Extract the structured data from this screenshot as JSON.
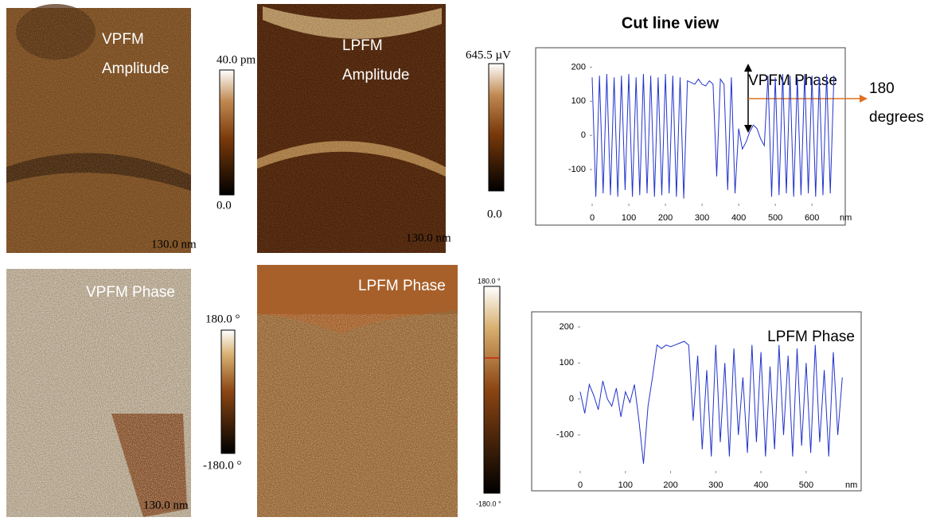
{
  "title": "Cut line view",
  "images": [
    {
      "label": [
        "VPFM",
        "Amplitude"
      ],
      "scale_bar": "130.0 nm",
      "colorbar": [
        "40.0 pm",
        "0.0"
      ]
    },
    {
      "label": [
        "LPFM",
        "Amplitude"
      ],
      "scale_bar": "130.0 nm",
      "colorbar": [
        "645.5 µV",
        "0.0"
      ]
    },
    {
      "label": [
        "VPFM Phase"
      ],
      "scale_bar": "130.0 nm",
      "colorbar": [
        "180.0 °",
        "-180.0 °"
      ]
    },
    {
      "label": [
        "LPFM Phase"
      ],
      "colorbar": [
        "180.0 °",
        "-180.0 °"
      ]
    }
  ],
  "annotation": [
    "180",
    "degrees"
  ],
  "chart_data": [
    {
      "type": "line",
      "title": "VPFM Phase",
      "x_label": "nm",
      "x": [
        0,
        10,
        20,
        30,
        40,
        50,
        60,
        70,
        80,
        90,
        100,
        110,
        120,
        130,
        140,
        150,
        160,
        170,
        180,
        190,
        200,
        210,
        220,
        230,
        240,
        250,
        260,
        270,
        280,
        290,
        300,
        310,
        320,
        330,
        340,
        350,
        360,
        370,
        380,
        390,
        400,
        410,
        420,
        430,
        440,
        450,
        460,
        470,
        480,
        490,
        500,
        510,
        520,
        530,
        540,
        550,
        560,
        570,
        580,
        590,
        600,
        610,
        620,
        630,
        640,
        650,
        660
      ],
      "series": [
        {
          "color": "#2233cc",
          "values": [
            170,
            -180,
            175,
            -170,
            180,
            -175,
            170,
            -180,
            175,
            -160,
            180,
            -180,
            170,
            -175,
            180,
            -170,
            175,
            -180,
            170,
            -175,
            180,
            -170,
            175,
            -180,
            170,
            -185,
            160,
            155,
            150,
            165,
            150,
            145,
            160,
            150,
            -120,
            165,
            150,
            -160,
            170,
            -170,
            20,
            -40,
            -20,
            10,
            30,
            20,
            -10,
            -30,
            175,
            -180,
            170,
            -175,
            180,
            -170,
            175,
            -180,
            170,
            -175,
            180,
            -170,
            175,
            -180,
            170,
            -175,
            180,
            -170,
            175
          ]
        }
      ],
      "xlim": [
        0,
        680
      ],
      "ylim": [
        -200,
        215
      ],
      "xticks": [
        0,
        100,
        200,
        300,
        400,
        500,
        600
      ],
      "yticks": [
        -100,
        0,
        100,
        200
      ]
    },
    {
      "type": "line",
      "title": "LPFM Phase",
      "x_label": "nm",
      "x": [
        0,
        10,
        20,
        30,
        40,
        50,
        60,
        70,
        80,
        90,
        100,
        110,
        120,
        130,
        140,
        150,
        160,
        170,
        180,
        190,
        200,
        210,
        220,
        230,
        240,
        250,
        260,
        270,
        280,
        290,
        300,
        310,
        320,
        330,
        340,
        350,
        360,
        370,
        380,
        390,
        400,
        410,
        420,
        430,
        440,
        450,
        460,
        470,
        480,
        490,
        500,
        510,
        520,
        530,
        540,
        550,
        560,
        570,
        580
      ],
      "series": [
        {
          "color": "#2233cc",
          "values": [
            20,
            -40,
            40,
            10,
            -30,
            50,
            0,
            -20,
            30,
            -50,
            20,
            -10,
            40,
            -60,
            -180,
            -20,
            60,
            150,
            140,
            150,
            145,
            150,
            155,
            160,
            150,
            -60,
            120,
            -140,
            80,
            -160,
            150,
            -120,
            100,
            -160,
            140,
            -100,
            60,
            -150,
            150,
            -120,
            130,
            -160,
            90,
            -140,
            150,
            -100,
            120,
            -160,
            140,
            -130,
            100,
            -150,
            150,
            -120,
            80,
            -160,
            130,
            -100,
            60
          ]
        }
      ],
      "xlim": [
        0,
        590
      ],
      "ylim": [
        -200,
        220
      ],
      "xticks": [
        0,
        100,
        200,
        300,
        400,
        500
      ],
      "yticks": [
        -100,
        0,
        100,
        200
      ]
    }
  ]
}
